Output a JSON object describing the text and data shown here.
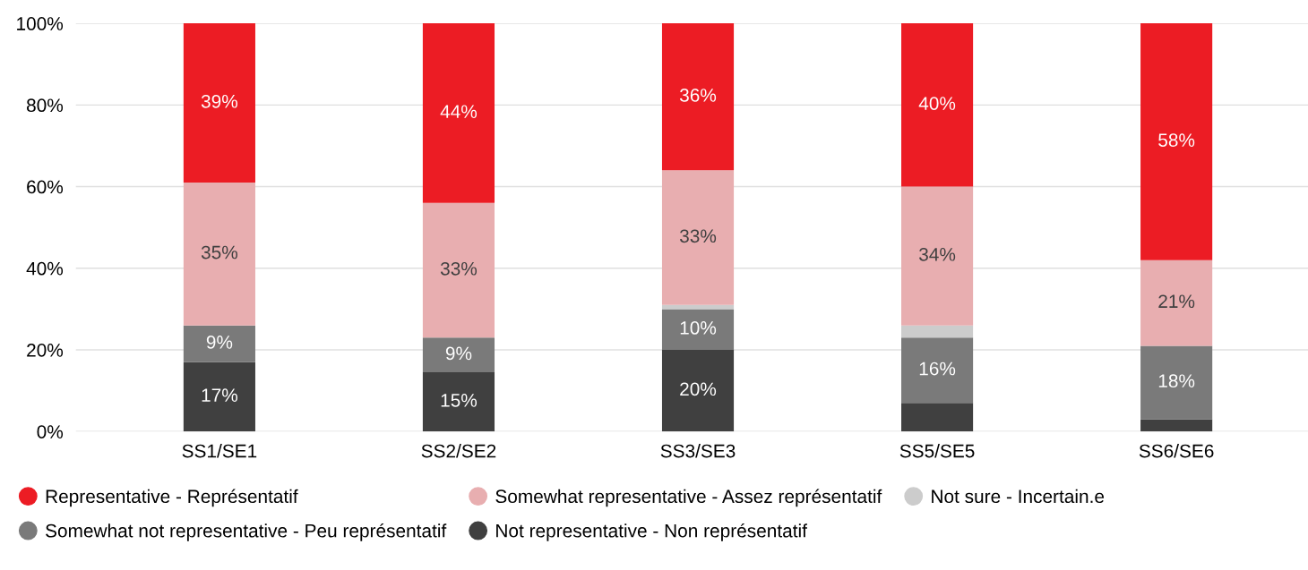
{
  "chart_data": {
    "type": "bar",
    "stacked": true,
    "categories": [
      "SS1/SE1",
      "SS2/SE2",
      "SS3/SE3",
      "SS5/SE5",
      "SS6/SE6"
    ],
    "series": [
      {
        "name": "Not representative - Non représentatif",
        "color": "#404040",
        "values": [
          17,
          14.5,
          20,
          7,
          3
        ],
        "value_labels": [
          "17%",
          "15%",
          "20%",
          null,
          null
        ]
      },
      {
        "name": "Somewhat not representative - Peu représentatif",
        "color": "#7a7a7a",
        "values": [
          9,
          8.5,
          10,
          16,
          18
        ],
        "value_labels": [
          "9%",
          "9%",
          "10%",
          "16%",
          "18%"
        ]
      },
      {
        "name": "Not sure - Incertain.e",
        "color": "#cccccc",
        "values": [
          0,
          0,
          1,
          3,
          0
        ],
        "value_labels": [
          null,
          null,
          null,
          null,
          null
        ]
      },
      {
        "name": "Somewhat representative - Assez représentatif",
        "color": "#e8aeb0",
        "values": [
          35,
          33,
          33,
          34,
          21
        ],
        "value_labels": [
          "35%",
          "33%",
          "33%",
          "34%",
          "21%"
        ]
      },
      {
        "name": "Representative - Représentatif",
        "color": "#ec1c24",
        "values": [
          39,
          44,
          36,
          40,
          58
        ],
        "value_labels": [
          "39%",
          "44%",
          "36%",
          "40%",
          "58%"
        ]
      }
    ],
    "ylim": [
      0,
      100
    ],
    "yticks": [
      {
        "value": 0,
        "label": "0%"
      },
      {
        "value": 20,
        "label": "20%"
      },
      {
        "value": 40,
        "label": "40%"
      },
      {
        "value": 60,
        "label": "60%"
      },
      {
        "value": 80,
        "label": "80%"
      },
      {
        "value": 100,
        "label": "100%"
      }
    ],
    "grid": "y",
    "legend": "bottom",
    "marker": "circle"
  }
}
